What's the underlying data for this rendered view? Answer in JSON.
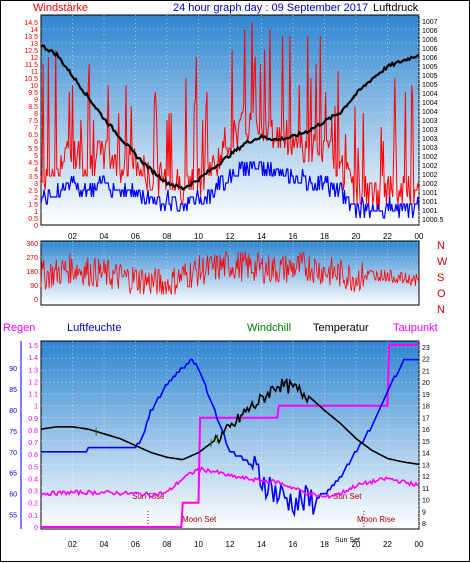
{
  "header": {
    "left_label": "Windstärke",
    "title": "24 hour graph day : 09 September 2017",
    "right_label": "Luftdruck"
  },
  "colors": {
    "wind_speed": "#ff0000",
    "wind_gust": "#cc0000",
    "wind_avg": "#0000ff",
    "pressure": "#000000",
    "direction": "#ff0000",
    "humidity": "#0000ff",
    "temperature": "#000000",
    "windchill": "#008000",
    "dewpoint": "#ff00ff",
    "rain": "#ff00ff",
    "sky_top": "#3a8fd6",
    "sky_bottom": "#ffffff",
    "axis_wind": "#ff0000",
    "axis_rain": "#ff00ff",
    "axis_hum": "#0000ff",
    "axis_dir": "#cc0000"
  },
  "chart_data": [
    {
      "type": "line",
      "name": "wind-pressure",
      "x_ticks": [
        "02",
        "04",
        "06",
        "08",
        "10",
        "12",
        "14",
        "16",
        "18",
        "20",
        "22",
        "00"
      ],
      "y_left_ticks": [
        "0",
        "0.5",
        "1",
        "1.5",
        "2",
        "2.5",
        "3",
        "3.5",
        "4",
        "4.5",
        "5",
        "5.5",
        "6",
        "6.5",
        "7",
        "7.5",
        "8",
        "8.5",
        "9",
        "9.5",
        "10",
        "10.5",
        "11",
        "11.5",
        "12",
        "12.5",
        "13",
        "13.5",
        "14",
        "14.5"
      ],
      "y_right_ticks": [
        "1000.5",
        "1001",
        "1001",
        "1001",
        "1002",
        "1002",
        "1002",
        "1002",
        "1003",
        "1003",
        "1003",
        "1003",
        "1004",
        "1004",
        "1004",
        "1005",
        "1005",
        "1005",
        "1006",
        "1006",
        "1006",
        "1006",
        "1007"
      ],
      "ylim_left": [
        0,
        15
      ],
      "xlim_hours": [
        0,
        24
      ],
      "series": [
        {
          "name": "Windstärke",
          "x": [
            0,
            1,
            2,
            3,
            4,
            5,
            6,
            7,
            8,
            9,
            10,
            11,
            12,
            13,
            14,
            15,
            16,
            17,
            18,
            19,
            20,
            21,
            22,
            23,
            24
          ],
          "values": [
            2,
            3,
            4,
            3,
            4,
            3,
            3,
            2,
            2,
            1.5,
            2,
            3,
            5,
            6,
            6,
            5,
            5,
            4,
            4,
            3,
            1,
            1,
            1,
            1,
            1
          ]
        },
        {
          "name": "Luftdruck",
          "x": [
            0,
            1,
            2,
            3,
            4,
            5,
            6,
            7,
            8,
            9,
            10,
            11,
            12,
            13,
            14,
            15,
            16,
            17,
            18,
            19,
            20,
            21,
            22,
            23,
            24
          ],
          "values": [
            1006.2,
            1005.9,
            1005.2,
            1004.5,
            1003.8,
            1003.2,
            1002.6,
            1002.1,
            1001.7,
            1001.5,
            1001.8,
            1002.2,
            1002.6,
            1003.0,
            1003.2,
            1003.1,
            1003.2,
            1003.4,
            1003.7,
            1004.0,
            1004.6,
            1005.1,
            1005.5,
            1005.7,
            1005.9
          ]
        }
      ]
    },
    {
      "type": "line",
      "name": "wind-direction",
      "y_ticks": [
        "360",
        "270",
        "180",
        "90",
        "0"
      ],
      "right_labels": [
        "N",
        "W",
        "S",
        "O",
        "N"
      ],
      "ylim": [
        0,
        360
      ],
      "series": [
        {
          "name": "direction",
          "x": [
            0,
            1,
            2,
            3,
            4,
            5,
            6,
            7,
            8,
            9,
            10,
            11,
            12,
            13,
            14,
            15,
            16,
            17,
            18,
            19,
            20,
            21,
            22,
            23,
            24
          ],
          "values": [
            150,
            170,
            200,
            180,
            160,
            140,
            130,
            110,
            90,
            150,
            180,
            200,
            220,
            210,
            200,
            190,
            200,
            210,
            180,
            160,
            140,
            160,
            150,
            130,
            120
          ]
        }
      ]
    },
    {
      "type": "line",
      "name": "temperature-humidity",
      "legend": [
        "Regen",
        "Luftfeuchte",
        "Windchill",
        "Temperatur",
        "Taupunkt"
      ],
      "y_rain_ticks": [
        "0",
        "0.1",
        "0.2",
        "0.3",
        "0.4",
        "0.5",
        "0.6",
        "0.7",
        "0.8",
        "0.9",
        "1",
        "1.1",
        "1.2",
        "1.3",
        "1.4",
        "1.5"
      ],
      "y_hum_ticks": [
        "55",
        "60",
        "65",
        "70",
        "75",
        "80",
        "85",
        "90"
      ],
      "y_temp_ticks": [
        "8",
        "9",
        "10",
        "11",
        "12",
        "13",
        "14",
        "15",
        "16",
        "17",
        "18",
        "19",
        "20",
        "21",
        "22",
        "23"
      ],
      "annotations": {
        "sun_rise": "Sun Rise",
        "sun_set": "Sun Set",
        "moon_set": "Moon Set",
        "moon_rise": "Moon Rise",
        "sun_set_small": "Sun Set"
      },
      "series": [
        {
          "name": "Luftfeuchte",
          "x": [
            0,
            2,
            4,
            6,
            6.5,
            7,
            8,
            8.5,
            9,
            9.5,
            10,
            11,
            12,
            13,
            14,
            15,
            16,
            17,
            18,
            19,
            20,
            21,
            22,
            23,
            24
          ],
          "values": [
            70,
            70,
            71,
            71,
            74,
            80,
            86,
            88,
            90,
            92,
            90,
            80,
            70,
            68,
            64,
            60,
            58,
            58,
            60,
            64,
            70,
            76,
            84,
            92,
            92
          ]
        },
        {
          "name": "Temperatur",
          "x": [
            0,
            1,
            2,
            3,
            4,
            5,
            6,
            7,
            8,
            9,
            10,
            11,
            12,
            13,
            14,
            15,
            16,
            17,
            18,
            19,
            20,
            21,
            22,
            23,
            24
          ],
          "values": [
            16,
            16.2,
            16.2,
            16,
            15.6,
            15.2,
            14.6,
            14.0,
            13.6,
            13.4,
            14.0,
            15.0,
            16.0,
            17.5,
            18.5,
            19.8,
            19.5,
            18.8,
            17.6,
            16.5,
            15.2,
            14.2,
            13.5,
            13.2,
            13.0
          ]
        },
        {
          "name": "Taupunkt",
          "x": [
            0,
            2,
            4,
            6,
            7,
            8,
            9,
            10,
            11,
            12,
            13,
            14,
            15,
            16,
            17,
            18,
            19,
            20,
            21,
            22,
            23,
            24
          ],
          "values": [
            10.5,
            10.6,
            10.6,
            10.5,
            10.4,
            10.6,
            11.8,
            12.6,
            12.4,
            12.0,
            11.8,
            11.6,
            11.5,
            11.0,
            10.5,
            10.2,
            10.5,
            11.2,
            11.5,
            11.8,
            11.5,
            11.2
          ]
        },
        {
          "name": "Regen",
          "x": [
            0,
            8.9,
            9.0,
            10.0,
            10.1,
            15,
            15.1,
            22,
            22.1,
            24
          ],
          "values": [
            0,
            0,
            0.2,
            0.2,
            0.9,
            0.9,
            1.0,
            1.0,
            1.5,
            1.5
          ]
        }
      ]
    }
  ]
}
